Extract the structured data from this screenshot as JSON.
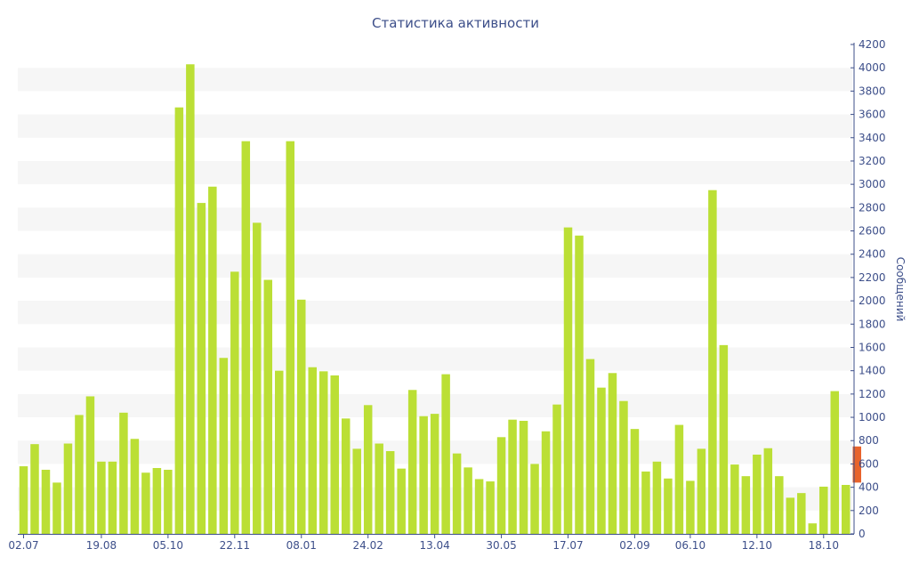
{
  "chart_data": {
    "type": "bar",
    "title": "Статистика активности",
    "ylabel": "Сообщений",
    "ylim": [
      0,
      4200
    ],
    "y_ticks": [
      0,
      200,
      400,
      600,
      800,
      1000,
      1200,
      1400,
      1600,
      1800,
      2000,
      2200,
      2400,
      2600,
      2800,
      3000,
      3200,
      3400,
      3600,
      3800,
      4000,
      4200
    ],
    "x_tick_labels": [
      {
        "label": "02.07",
        "index": 0
      },
      {
        "label": "19.08",
        "index": 7
      },
      {
        "label": "05.10",
        "index": 13
      },
      {
        "label": "22.11",
        "index": 19
      },
      {
        "label": "08.01",
        "index": 25
      },
      {
        "label": "24.02",
        "index": 31
      },
      {
        "label": "13.04",
        "index": 37
      },
      {
        "label": "30.05",
        "index": 43
      },
      {
        "label": "17.07",
        "index": 49
      },
      {
        "label": "02.09",
        "index": 55
      },
      {
        "label": "06.10",
        "index": 60
      },
      {
        "label": "12.10",
        "index": 66
      },
      {
        "label": "18.10",
        "index": 72
      }
    ],
    "grid": "horizontal alternating bands",
    "colors": {
      "bar": "#bbdf35",
      "highlight": "#e8632c",
      "text": "#3d4f8a",
      "axis": "#3d4f8a",
      "band": "#f6f6f6"
    },
    "series": [
      {
        "values": [
          580,
          770,
          550,
          440,
          775,
          1020,
          1180,
          620,
          620,
          1040,
          815,
          525,
          565,
          550,
          3660,
          4030,
          2840,
          2980,
          1510,
          2250,
          3370,
          2670,
          2180,
          1400,
          3370,
          2010,
          1430,
          1395,
          1360,
          990,
          730,
          1105,
          775,
          710,
          560,
          1235,
          1010,
          1030,
          1370,
          690,
          570,
          470,
          450,
          830,
          980,
          970,
          600,
          880,
          1110,
          2630,
          2560,
          1500,
          1255,
          1380,
          1140,
          900,
          535,
          620,
          475,
          935,
          455,
          730,
          2950,
          1620,
          595,
          495,
          680,
          735,
          495,
          310,
          350,
          90,
          405,
          1225,
          420
        ]
      }
    ],
    "highlight_bar": {
      "index": 75,
      "low": 440,
      "high": 750
    }
  }
}
